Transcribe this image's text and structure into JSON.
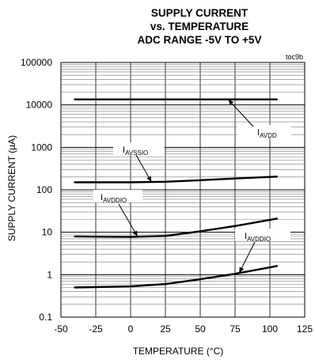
{
  "chart_data": {
    "type": "line",
    "title": [
      "SUPPLY CURRENT",
      "vs. TEMPERATURE",
      "ADC RANGE -5V TO +5V"
    ],
    "figure_id": "toc9b",
    "xlabel": "TEMPERATURE (°C)",
    "ylabel": "SUPPLY CURRENT (µA)",
    "xlim": [
      -50,
      125
    ],
    "ylim": [
      0.1,
      100000
    ],
    "yscale": "log",
    "xticks": [
      -50,
      -25,
      0,
      25,
      50,
      75,
      100,
      125
    ],
    "xtick_labels": [
      "-50",
      "-25",
      "0",
      "25",
      "50",
      "75",
      "100",
      "125"
    ],
    "yticks": [
      0.1,
      1,
      10,
      100,
      1000,
      10000,
      100000
    ],
    "ytick_labels": [
      "0.1",
      "1",
      "10",
      "100",
      "1000",
      "10000",
      "100000"
    ],
    "grid": true,
    "legend": "none",
    "series": [
      {
        "label_main": "I",
        "label_sub": "AVDD",
        "x": [
          -40,
          -25,
          0,
          25,
          50,
          75,
          105
        ],
        "y": [
          13500,
          13500,
          13500,
          13500,
          13500,
          13500,
          13500
        ]
      },
      {
        "label_main": "I",
        "label_sub": "AVSSIO",
        "x": [
          -40,
          -25,
          0,
          25,
          50,
          75,
          105
        ],
        "y": [
          150,
          150,
          150,
          155,
          168,
          185,
          205
        ]
      },
      {
        "label_main": "I",
        "label_sub": "AVDDIO",
        "x": [
          -40,
          -25,
          0,
          25,
          50,
          75,
          105
        ],
        "y": [
          8,
          7.9,
          7.8,
          8.2,
          10.5,
          14,
          21
        ]
      },
      {
        "label_main": "I",
        "label_sub": "AVDDIO",
        "x": [
          -40,
          -25,
          0,
          25,
          50,
          75,
          105
        ],
        "y": [
          0.5,
          0.51,
          0.53,
          0.6,
          0.78,
          1.05,
          1.6
        ]
      }
    ]
  }
}
